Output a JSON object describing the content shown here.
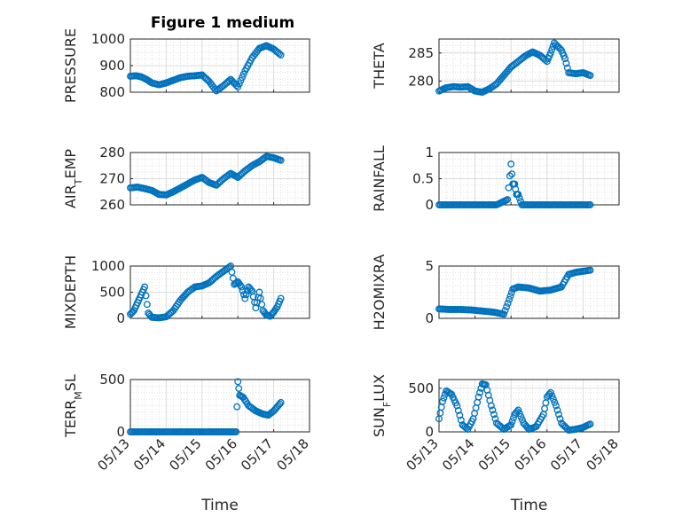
{
  "chart_data": [
    {
      "type": "scatter",
      "title": "Figure 1 medium",
      "ylabel": "PRESSURE",
      "ylim": [
        800,
        1000
      ],
      "yticks": [
        "800",
        "900",
        "1000"
      ],
      "xlim": [
        0,
        5
      ],
      "grid": true,
      "marker": "o",
      "color": "#0072BD",
      "x": [
        0,
        0.15,
        0.3,
        0.45,
        0.6,
        0.8,
        1.0,
        1.2,
        1.4,
        1.6,
        1.8,
        2.0,
        2.2,
        2.4,
        2.6,
        2.8,
        3.0,
        3.2,
        3.4,
        3.6,
        3.8,
        4.0,
        4.2
      ],
      "values": [
        860,
        862,
        858,
        848,
        835,
        828,
        835,
        845,
        855,
        860,
        862,
        865,
        840,
        805,
        825,
        848,
        820,
        880,
        930,
        965,
        975,
        962,
        940
      ]
    },
    {
      "type": "scatter",
      "ylabel": "THETA",
      "ylim": [
        278,
        287.5
      ],
      "yticks": [
        "280",
        "285"
      ],
      "xlim": [
        0,
        5
      ],
      "grid": true,
      "marker": "o",
      "color": "#0072BD",
      "x": [
        0,
        0.2,
        0.4,
        0.6,
        0.8,
        1.0,
        1.2,
        1.4,
        1.6,
        1.8,
        2.0,
        2.2,
        2.4,
        2.6,
        2.8,
        3.0,
        3.1,
        3.2,
        3.4,
        3.5,
        3.6,
        3.8,
        4.0,
        4.2
      ],
      "values": [
        278.2,
        278.8,
        279.0,
        278.9,
        279.0,
        278.2,
        278.0,
        278.6,
        279.5,
        281,
        282.5,
        283.5,
        284.5,
        285.2,
        284.6,
        283.5,
        285,
        286.8,
        285.5,
        284,
        281.5,
        281.3,
        281.5,
        281.0
      ]
    },
    {
      "type": "scatter",
      "ylabel": "AIR_TEMP",
      "ylim": [
        260,
        280
      ],
      "yticks": [
        "260",
        "270",
        "280"
      ],
      "xlim": [
        0,
        5
      ],
      "grid": true,
      "marker": "o",
      "color": "#0072BD",
      "x": [
        0,
        0.2,
        0.4,
        0.6,
        0.8,
        1.0,
        1.2,
        1.4,
        1.6,
        1.8,
        2.0,
        2.2,
        2.4,
        2.6,
        2.8,
        3.0,
        3.2,
        3.4,
        3.6,
        3.8,
        4.0,
        4.2
      ],
      "values": [
        266.5,
        266.8,
        266.2,
        265.5,
        264.0,
        263.8,
        265.0,
        266.5,
        268.0,
        269.5,
        270.5,
        268.5,
        267.5,
        270.0,
        272.0,
        270.5,
        273.0,
        275.0,
        276.5,
        278.5,
        278.0,
        277.0
      ]
    },
    {
      "type": "scatter",
      "ylabel": "RAINFALL",
      "ylim": [
        0,
        1
      ],
      "yticks": [
        "0",
        "0.5",
        "1"
      ],
      "xlim": [
        0,
        5
      ],
      "grid": true,
      "marker": "o",
      "color": "#0072BD",
      "x": [
        0,
        0.4,
        0.8,
        1.2,
        1.6,
        1.9,
        2.0,
        2.05,
        2.1,
        2.15,
        2.2,
        2.3,
        2.6,
        3.0,
        3.4,
        3.8,
        4.2
      ],
      "values": [
        0,
        0,
        0,
        0,
        0,
        0.1,
        0.78,
        0.4,
        0.4,
        0.2,
        0.2,
        0,
        0,
        0,
        0,
        0,
        0
      ]
    },
    {
      "type": "scatter",
      "ylabel": "MIXDEPTH",
      "ylim": [
        0,
        1000
      ],
      "yticks": [
        "0",
        "500",
        "1000"
      ],
      "xlim": [
        0,
        5
      ],
      "grid": true,
      "marker": "o",
      "color": "#0072BD",
      "x": [
        0,
        0.1,
        0.2,
        0.3,
        0.4,
        0.5,
        0.6,
        0.8,
        1.0,
        1.2,
        1.4,
        1.6,
        1.8,
        2.0,
        2.2,
        2.4,
        2.6,
        2.8,
        2.9,
        3.0,
        3.1,
        3.2,
        3.3,
        3.4,
        3.5,
        3.6,
        3.7,
        3.8,
        3.9,
        4.0,
        4.1,
        4.2
      ],
      "values": [
        80,
        150,
        300,
        450,
        600,
        100,
        20,
        10,
        30,
        150,
        350,
        500,
        600,
        620,
        680,
        800,
        900,
        1000,
        650,
        700,
        600,
        380,
        600,
        520,
        200,
        500,
        150,
        60,
        40,
        120,
        220,
        380
      ]
    },
    {
      "type": "scatter",
      "ylabel": "H2OMIXRA",
      "ylim": [
        0,
        5
      ],
      "yticks": [
        "0",
        "5"
      ],
      "xlim": [
        0,
        5
      ],
      "grid": true,
      "marker": "o",
      "color": "#0072BD",
      "x": [
        0,
        0.3,
        0.6,
        0.9,
        1.2,
        1.5,
        1.8,
        1.95,
        2.05,
        2.2,
        2.5,
        2.8,
        3.1,
        3.4,
        3.6,
        3.8,
        4.0,
        4.2
      ],
      "values": [
        0.9,
        0.85,
        0.85,
        0.8,
        0.7,
        0.6,
        0.4,
        1.8,
        2.8,
        3.0,
        2.9,
        2.6,
        2.7,
        3.0,
        4.2,
        4.4,
        4.5,
        4.6
      ]
    },
    {
      "type": "scatter",
      "ylabel": "TERR_MSL",
      "ylim": [
        0,
        500
      ],
      "yticks": [
        "0",
        "500"
      ],
      "xlim": [
        0,
        5
      ],
      "xticks": [
        "05/13",
        "05/14",
        "05/15",
        "05/16",
        "05/17",
        "05/18"
      ],
      "xlabel": "Time",
      "grid": true,
      "marker": "o",
      "color": "#0072BD",
      "x": [
        0,
        0.5,
        1.0,
        1.5,
        2.0,
        2.5,
        2.95,
        3.0,
        3.05,
        3.15,
        3.3,
        3.5,
        3.7,
        3.85,
        4.0,
        4.1,
        4.2
      ],
      "values": [
        0,
        0,
        0,
        0,
        0,
        0,
        0,
        480,
        350,
        330,
        250,
        200,
        170,
        160,
        200,
        240,
        280
      ]
    },
    {
      "type": "scatter",
      "ylabel": "SUN_FLUX",
      "ylim": [
        0,
        600
      ],
      "yticks": [
        "0",
        "500"
      ],
      "xlim": [
        0,
        5
      ],
      "xticks": [
        "05/13",
        "05/14",
        "05/15",
        "05/16",
        "05/17",
        "05/18"
      ],
      "xlabel": "Time",
      "grid": true,
      "marker": "o",
      "color": "#0072BD",
      "x": [
        0,
        0.1,
        0.2,
        0.35,
        0.5,
        0.65,
        0.8,
        0.95,
        1.1,
        1.2,
        1.3,
        1.45,
        1.6,
        1.8,
        2.0,
        2.1,
        2.2,
        2.35,
        2.5,
        2.7,
        2.9,
        3.0,
        3.1,
        3.25,
        3.4,
        3.6,
        3.8,
        4.0,
        4.2
      ],
      "values": [
        150,
        350,
        470,
        430,
        300,
        80,
        30,
        150,
        400,
        550,
        540,
        300,
        100,
        30,
        80,
        200,
        250,
        100,
        30,
        60,
        200,
        400,
        450,
        300,
        100,
        20,
        30,
        50,
        90
      ]
    }
  ]
}
